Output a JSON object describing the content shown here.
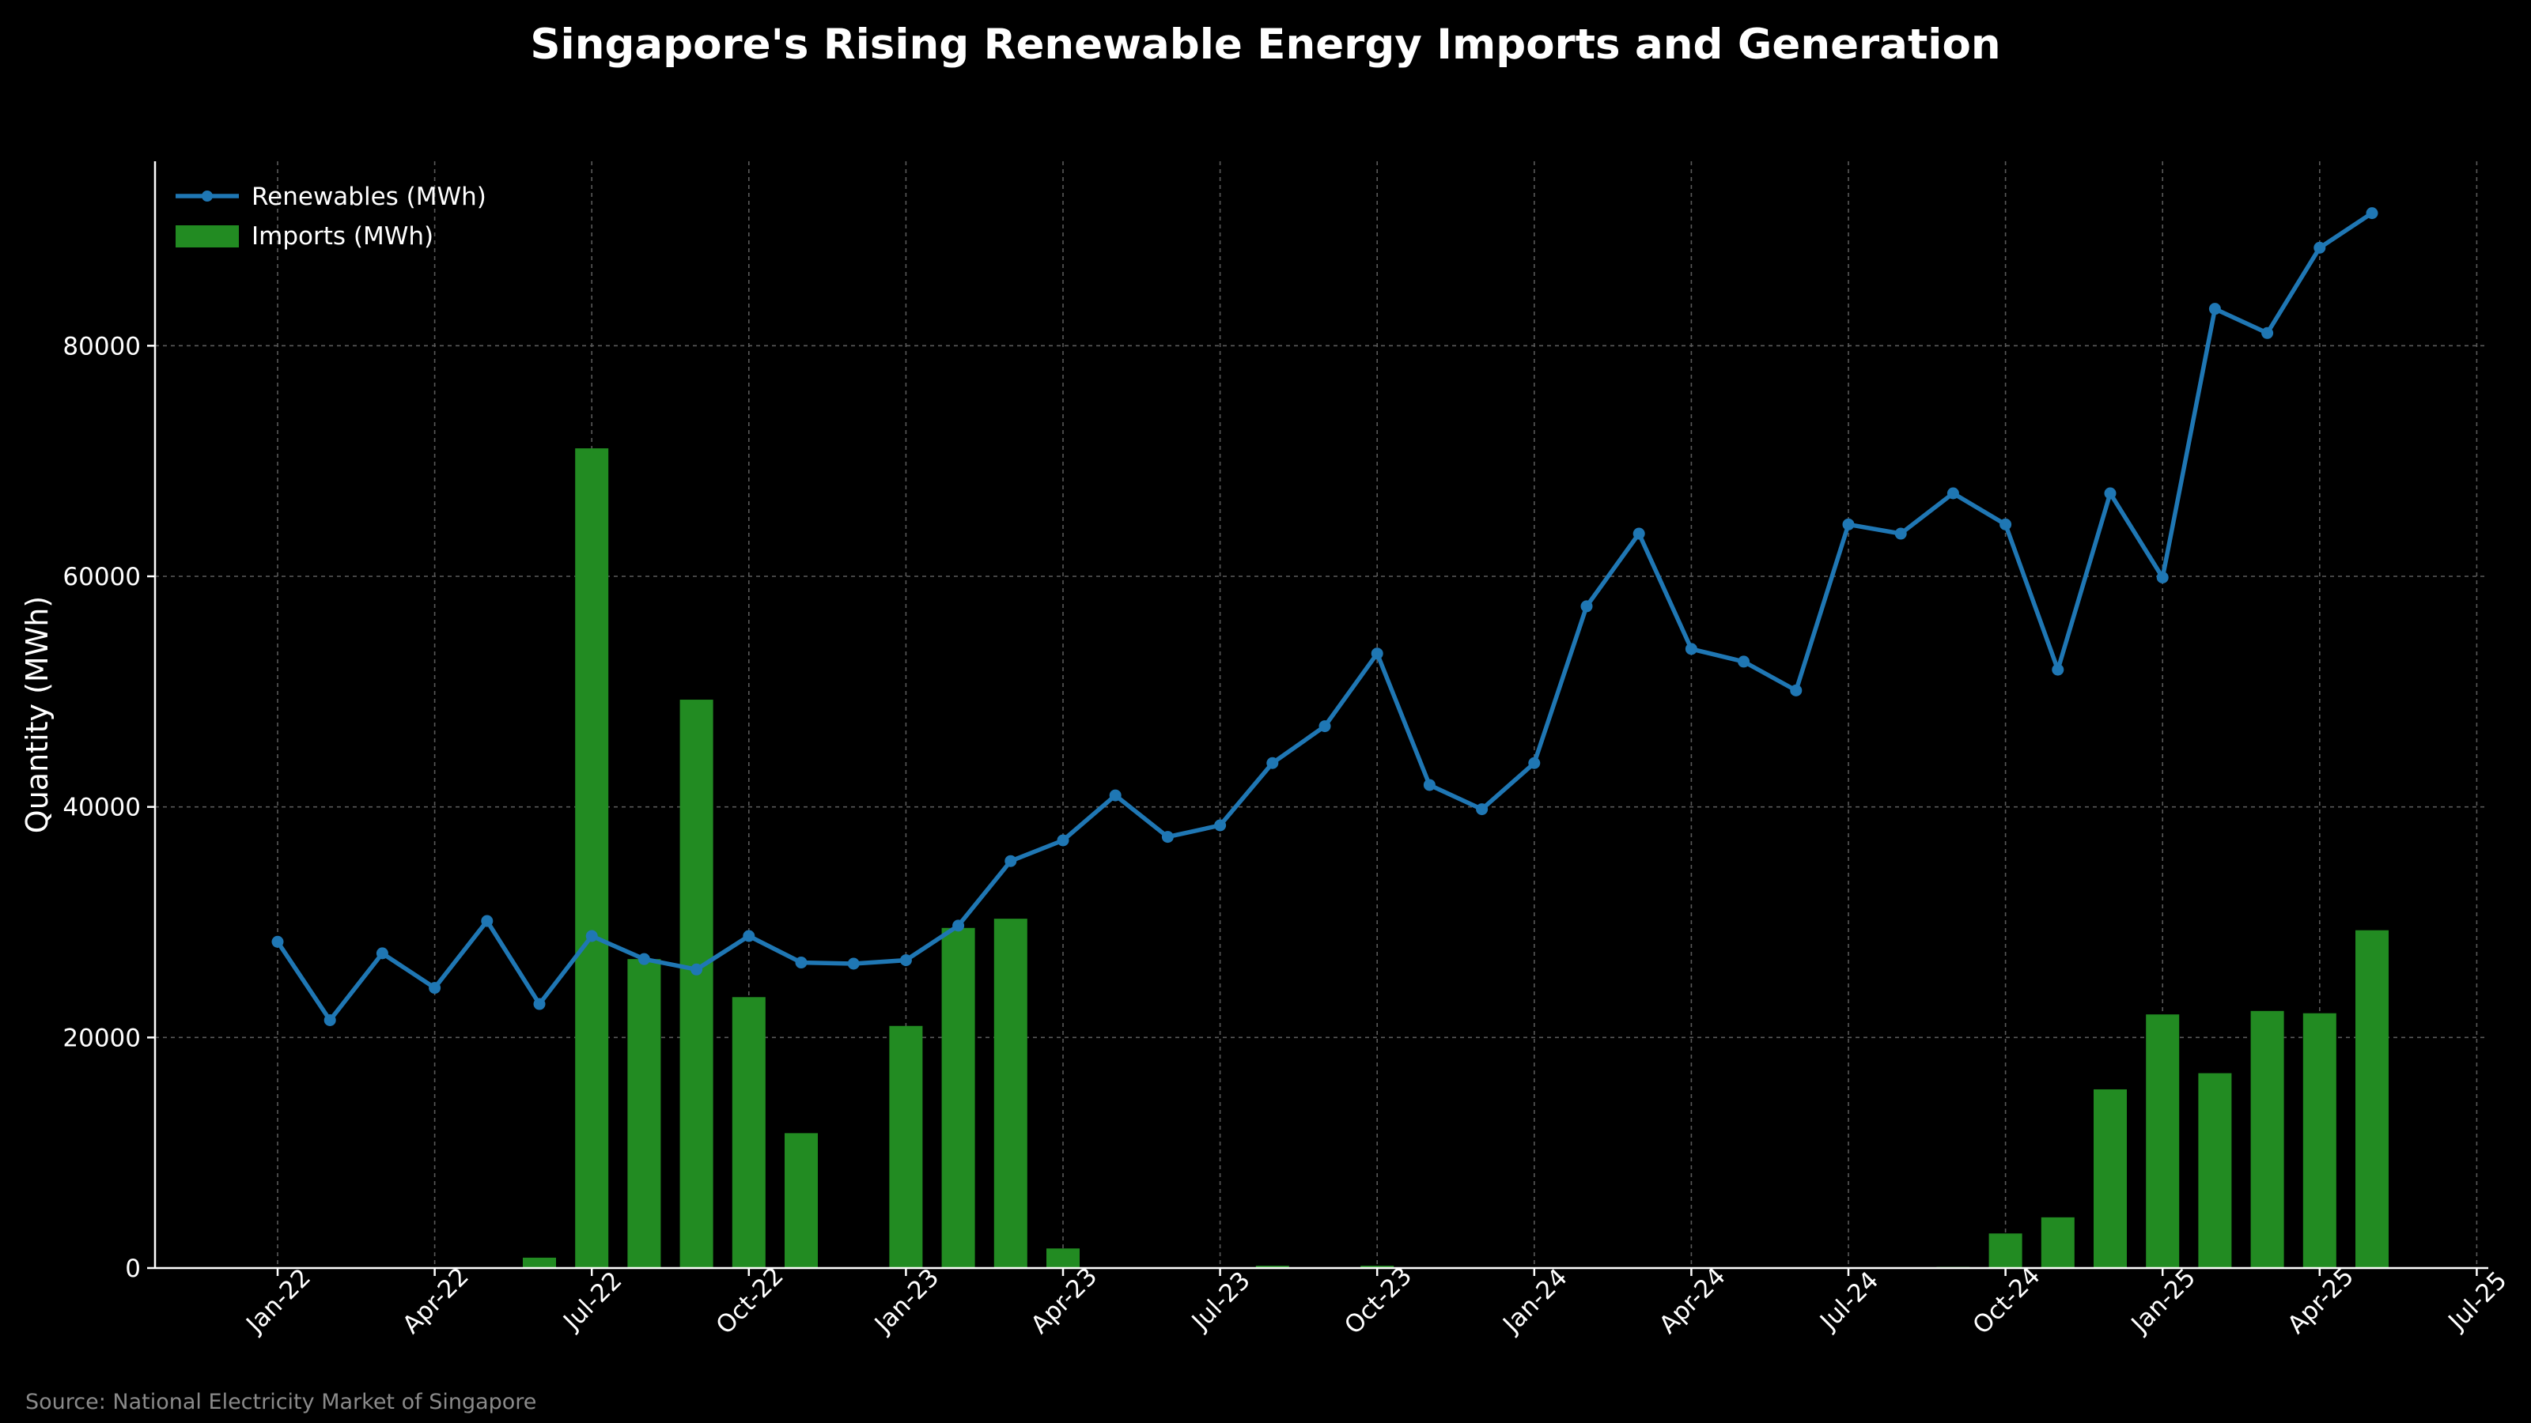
{
  "chart_data": {
    "type": "bar+line",
    "title": "Singapore's Rising Renewable Energy Imports and Generation",
    "ylabel": "Quantity (MWh)",
    "xlabel": "",
    "ylim": [
      0,
      96000
    ],
    "yticks": [
      0,
      20000,
      40000,
      60000,
      80000
    ],
    "grid": true,
    "legend_position": "top-left",
    "x_months": [
      "2022-01",
      "2022-02",
      "2022-03",
      "2022-04",
      "2022-05",
      "2022-06",
      "2022-07",
      "2022-08",
      "2022-09",
      "2022-10",
      "2022-11",
      "2022-12",
      "2023-01",
      "2023-02",
      "2023-03",
      "2023-04",
      "2023-05",
      "2023-06",
      "2023-07",
      "2023-08",
      "2023-09",
      "2023-10",
      "2023-11",
      "2023-12",
      "2024-01",
      "2024-02",
      "2024-03",
      "2024-04",
      "2024-05",
      "2024-06",
      "2024-07",
      "2024-08",
      "2024-09",
      "2024-10",
      "2024-11",
      "2024-12",
      "2025-01",
      "2025-02",
      "2025-03",
      "2025-04",
      "2025-05"
    ],
    "xticks": [
      {
        "label": "Jan-22",
        "month_index": 0
      },
      {
        "label": "Apr-22",
        "month_index": 3
      },
      {
        "label": "Jul-22",
        "month_index": 6
      },
      {
        "label": "Oct-22",
        "month_index": 9
      },
      {
        "label": "Jan-23",
        "month_index": 12
      },
      {
        "label": "Apr-23",
        "month_index": 15
      },
      {
        "label": "Jul-23",
        "month_index": 18
      },
      {
        "label": "Oct-23",
        "month_index": 21
      },
      {
        "label": "Jan-24",
        "month_index": 24
      },
      {
        "label": "Apr-24",
        "month_index": 27
      },
      {
        "label": "Jul-24",
        "month_index": 30
      },
      {
        "label": "Oct-24",
        "month_index": 33
      },
      {
        "label": "Jan-25",
        "month_index": 36
      },
      {
        "label": "Apr-25",
        "month_index": 39
      },
      {
        "label": "Jul-25",
        "month_index": 42
      }
    ],
    "series": [
      {
        "name": "Renewables (MWh)",
        "kind": "line",
        "color": "#1f77b4",
        "values": [
          28300,
          21500,
          27300,
          24300,
          30100,
          22900,
          28800,
          26800,
          25900,
          28800,
          26500,
          26400,
          26700,
          29700,
          35300,
          37100,
          41000,
          37400,
          38400,
          43800,
          47000,
          53300,
          41900,
          39800,
          43800,
          57400,
          63700,
          53700,
          52600,
          50100,
          64500,
          63700,
          67200,
          64500,
          51900,
          67200,
          59900,
          83200,
          81100,
          88500,
          91500
        ]
      },
      {
        "name": "Imports (MWh)",
        "kind": "bar",
        "color": "#228b22",
        "values": [
          0,
          0,
          0,
          0,
          0,
          900,
          71100,
          26800,
          49300,
          23500,
          11700,
          0,
          21000,
          29500,
          30300,
          1700,
          0,
          0,
          0,
          200,
          0,
          200,
          0,
          0,
          0,
          0,
          0,
          0,
          0,
          0,
          0,
          0,
          100,
          3000,
          4400,
          15500,
          22000,
          16900,
          22300,
          22100,
          29300
        ]
      }
    ]
  },
  "source_note": "Source: National Electricity Market of Singapore"
}
